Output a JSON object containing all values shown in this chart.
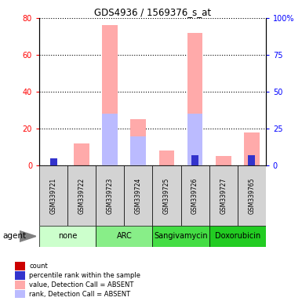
{
  "title": "GDS4936 / 1569376_s_at",
  "samples": [
    "GSM339721",
    "GSM339722",
    "GSM339723",
    "GSM339724",
    "GSM339725",
    "GSM339726",
    "GSM339727",
    "GSM339765"
  ],
  "agents": [
    {
      "label": "none",
      "samples": [
        0,
        1
      ],
      "color": "#ccffcc"
    },
    {
      "label": "ARC",
      "samples": [
        2,
        3
      ],
      "color": "#88ee88"
    },
    {
      "label": "Sangivamycin",
      "samples": [
        4,
        5
      ],
      "color": "#44dd44"
    },
    {
      "label": "Doxorubicin",
      "samples": [
        6,
        7
      ],
      "color": "#22cc22"
    }
  ],
  "value_absent": [
    0,
    12,
    76,
    25,
    8,
    72,
    5,
    18
  ],
  "rank_absent": [
    0,
    0,
    35,
    20,
    0,
    35,
    0,
    0
  ],
  "count": [
    3,
    0,
    0,
    0,
    0,
    0,
    0,
    0
  ],
  "percentile_rank": [
    5,
    0,
    0,
    0,
    0,
    7,
    0,
    7
  ],
  "ylim_left": [
    0,
    80
  ],
  "ylim_right": [
    0,
    100
  ],
  "yticks_left": [
    0,
    20,
    40,
    60,
    80
  ],
  "yticks_right": [
    0,
    25,
    50,
    75,
    100
  ],
  "color_count": "#cc0000",
  "color_percentile": "#3333cc",
  "color_value_absent": "#ffaaaa",
  "color_rank_absent": "#bbbbff",
  "legend_items": [
    {
      "color": "#cc0000",
      "label": "count"
    },
    {
      "color": "#3333cc",
      "label": "percentile rank within the sample"
    },
    {
      "color": "#ffaaaa",
      "label": "value, Detection Call = ABSENT"
    },
    {
      "color": "#bbbbff",
      "label": "rank, Detection Call = ABSENT"
    }
  ]
}
